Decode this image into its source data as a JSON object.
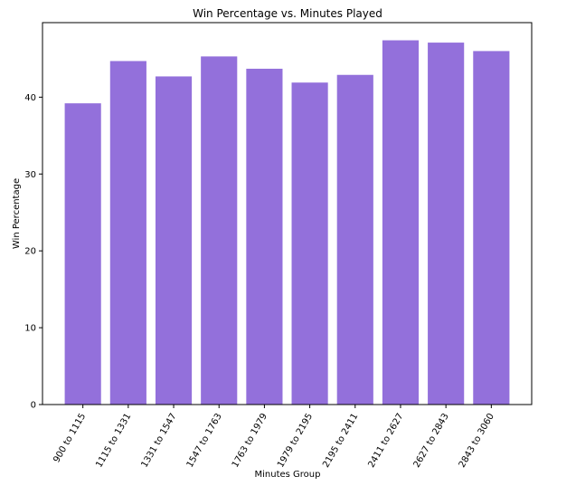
{
  "chart_data": {
    "type": "bar",
    "title": "Win Percentage vs. Minutes Played",
    "xlabel": "Minutes Group",
    "ylabel": "Win Percentage",
    "categories": [
      "900 to 1115",
      "1115 to 1331",
      "1331 to 1547",
      "1547 to 1763",
      "1763 to 1979",
      "1979 to 2195",
      "2195 to 2411",
      "2411 to 2627",
      "2627 to 2843",
      "2843 to 3060"
    ],
    "values": [
      39.2,
      44.7,
      42.7,
      45.3,
      43.7,
      41.9,
      42.9,
      47.4,
      47.1,
      46.0
    ],
    "ylim": [
      0,
      49.7
    ],
    "yticks": [
      0,
      10,
      20,
      30,
      40
    ],
    "bar_color": "#9370DB",
    "grid": false,
    "legend": "none"
  }
}
